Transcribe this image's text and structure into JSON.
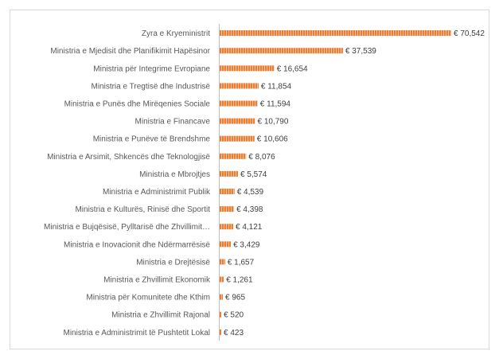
{
  "chart_data": {
    "type": "bar",
    "orientation": "horizontal",
    "title": "",
    "xlabel": "",
    "ylabel": "",
    "grid": false,
    "legend": "none",
    "currency_prefix": "€ ",
    "bar_color": "#ed7d31",
    "categories": [
      "Zyra e Kryeministrit",
      "Ministria e Mjedisit dhe Planifikimit Hapësinor",
      "Ministria për Integrime Evropiane",
      "Ministria e Tregtisë dhe Industrisë",
      "Ministria e Punës dhe Mirëqenies Sociale",
      "Ministria e Financave",
      "Ministria e Punëve të Brendshme",
      "Ministria e Arsimit, Shkencës dhe Teknologjisë",
      "Ministria e Mbrojtjes",
      "Ministria e Administrimit Publik",
      "Ministria e Kulturës, Rinisë dhe Sportit",
      "Ministria e Bujqësisë, Pylltarisë dhe Zhvillimit…",
      "Ministria e Inovacionit dhe Ndërmarrësisë",
      "Ministria e Drejtësisë",
      "Ministria e Zhvillimit Ekonomik",
      "Ministria për Komunitete dhe Kthim",
      "Ministria e Zhvillimit Rajonal",
      "Ministria e Administrimit të Pushtetit Lokal"
    ],
    "values": [
      70542,
      37539,
      16654,
      11854,
      11594,
      10790,
      10606,
      8076,
      5574,
      4539,
      4398,
      4121,
      3429,
      1657,
      1261,
      965,
      520,
      423
    ],
    "value_labels": [
      "€ 70,542",
      "€ 37,539",
      "€ 16,654",
      "€ 11,854",
      "€ 11,594",
      "€ 10,790",
      "€ 10,606",
      "€ 8,076",
      "€ 5,574",
      "€ 4,539",
      "€ 4,398",
      "€ 4,121",
      "€ 3,429",
      "€ 1,657",
      "€ 1,261",
      "€ 965",
      "€ 520",
      "€ 423"
    ],
    "xlim": [
      0,
      70542
    ]
  }
}
